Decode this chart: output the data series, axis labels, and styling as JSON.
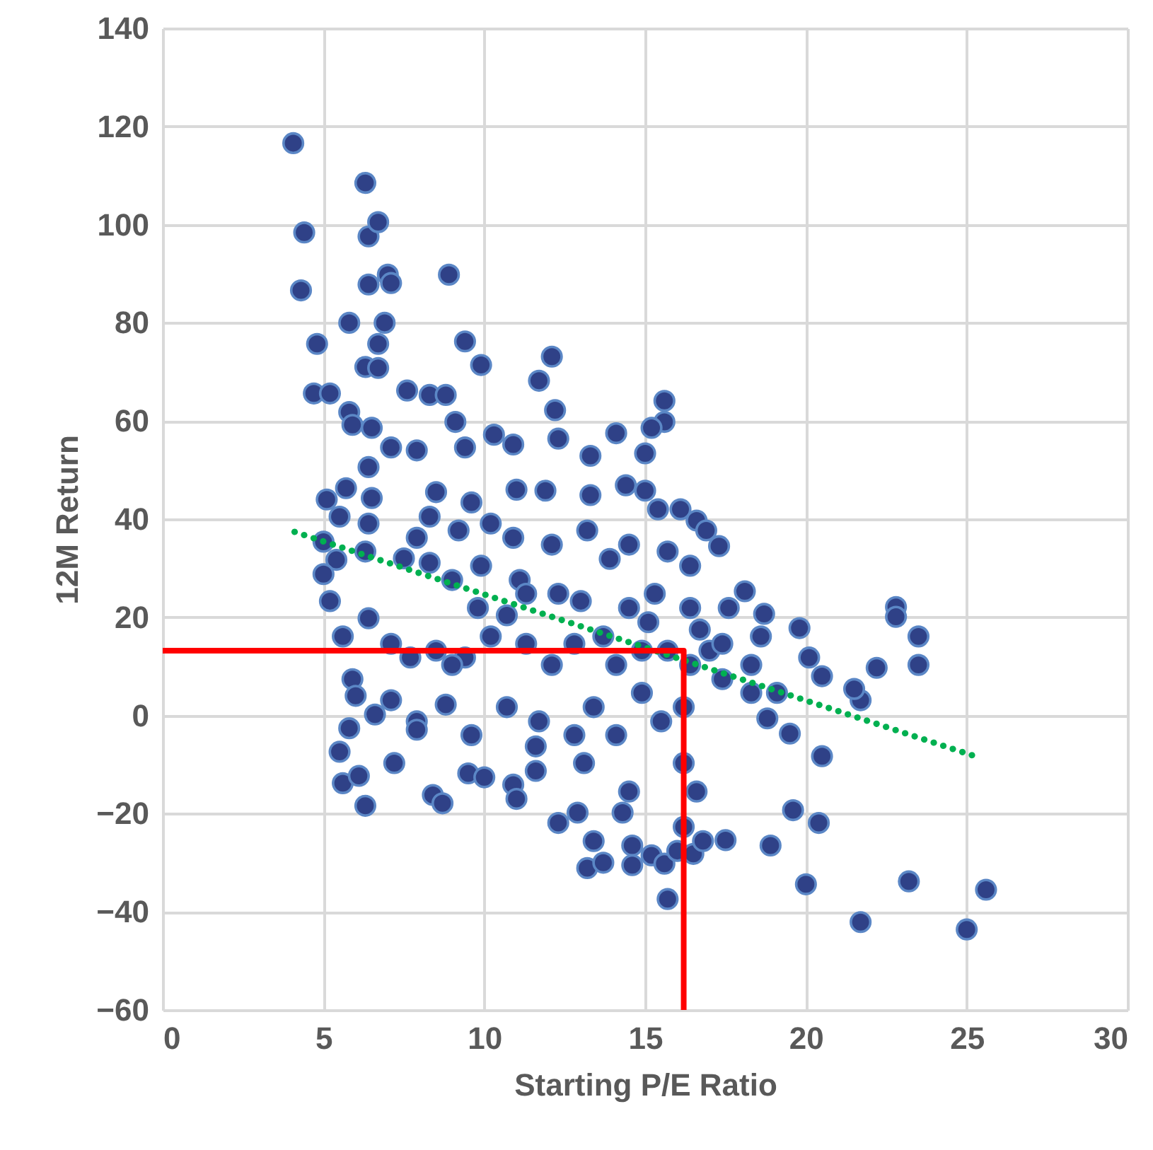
{
  "chart_data": {
    "type": "scatter",
    "xlabel": "Starting P/E Ratio",
    "ylabel": "12M Return",
    "xlim": [
      0,
      30
    ],
    "xticks": [
      0,
      5,
      10,
      15,
      20,
      25,
      30
    ],
    "ylim": [
      -60,
      140
    ],
    "yticks": [
      -60,
      -40,
      -20,
      0,
      20,
      40,
      60,
      80,
      100,
      120,
      140
    ],
    "grid": true,
    "marker": "circle",
    "series": [
      {
        "color": "#2f4187",
        "x": [
          4.06,
          4.4,
          4.3,
          4.8,
          4.7,
          5.2,
          6.3,
          6.4,
          6.7,
          7.0,
          7.1,
          5.8,
          6.9,
          6.3,
          6.7,
          6.7,
          6.4,
          8.9,
          9.4,
          12.1,
          9.9,
          11.7,
          7.6,
          8.3,
          8.8,
          15.6,
          15.6,
          15.2,
          14.1,
          10.3,
          9.1,
          5.8,
          5.9,
          6.5,
          7.1,
          7.9,
          9.4,
          10.9,
          12.3,
          13.3,
          15,
          5.1,
          6.4,
          5.7,
          6.5,
          8.5,
          9.6,
          11,
          11.9,
          13.3,
          14.4,
          15,
          15.4,
          16.1,
          16.6,
          17.3,
          5.5,
          6.4,
          5,
          5.4,
          6.3,
          5.0,
          5.2,
          5.6,
          6.4,
          7.5,
          8.3,
          9,
          9.9,
          11.1,
          12.3,
          13,
          14.5,
          15.3,
          16.4,
          17.6,
          18.1,
          18.7,
          19.8,
          20.1,
          20.5,
          22.8,
          22.8,
          23.5,
          23.5,
          22.2,
          21.7,
          21.5,
          20.5,
          19.5,
          18.8,
          18.3,
          17.4,
          17,
          16.2,
          15.5,
          14.9,
          14.1,
          13.4,
          12.8,
          11.7,
          10.7,
          9.6,
          8.8,
          7.9,
          7.1,
          5.9,
          6.0,
          5.8,
          6.6,
          5.5,
          5.6,
          6.3,
          6.1,
          7.2,
          7.9,
          8.4,
          8.7,
          9.5,
          10,
          10.9,
          11,
          11.6,
          12.3,
          12.9,
          13.2,
          13.7,
          13.4,
          14.3,
          14.6,
          14.6,
          15.2,
          15.7,
          15.6,
          16,
          16.2,
          16.5,
          16.8,
          17.5,
          16.6,
          16.2,
          18.9,
          19.6,
          20,
          20.4,
          21.7,
          23.2,
          25,
          25.6,
          19.1,
          18.3,
          18.6,
          17.4,
          16.4,
          16.7,
          15.7,
          14.9,
          15.1,
          13.7,
          12.8,
          12.1,
          11.3,
          10.2,
          9.4,
          8.5,
          7.7,
          7.1,
          9,
          9.8,
          10.7,
          11.3,
          10.9,
          10.2,
          9.2,
          8.3,
          7.9,
          12.1,
          13.2,
          13.9,
          14.5,
          15.7,
          16.4,
          16.9,
          12.2,
          13.1,
          14.1,
          14.5,
          11.6
        ],
        "values": [
          116.6,
          98.4,
          86.6,
          75.7,
          65.6,
          65.6,
          108.5,
          97.6,
          100.5,
          89.8,
          88.1,
          80,
          80,
          71,
          75.7,
          70.8,
          87.8,
          89.8,
          76.2,
          73.1,
          71.4,
          68.2,
          66.2,
          65.3,
          65.3,
          64.1,
          59.8,
          58.6,
          57.5,
          57.2,
          59.8,
          61.8,
          59.2,
          58.6,
          54.6,
          54,
          54.6,
          55.2,
          56.4,
          52.9,
          53.4,
          44.0,
          50.6,
          46.3,
          44.3,
          45.5,
          43.4,
          46,
          45.8,
          44.9,
          46.9,
          45.8,
          42,
          42,
          39.7,
          34.5,
          40.5,
          39.1,
          35.4,
          31.7,
          33.4,
          28.8,
          23.3,
          16.1,
          19.8,
          32,
          31.1,
          27.6,
          30.5,
          27.6,
          24.8,
          23.3,
          21.9,
          24.8,
          21.9,
          21.9,
          25.3,
          20.7,
          17.8,
          11.8,
          8,
          22.1,
          20.1,
          16.1,
          10.3,
          9.7,
          3.1,
          5.4,
          -8.3,
          -3.7,
          -0.6,
          4.6,
          7.4,
          13.2,
          1.7,
          -1.2,
          4.6,
          10.3,
          1.7,
          -4.0,
          -1.2,
          1.7,
          -4.0,
          2.2,
          -1.2,
          3.1,
          7.4,
          4.0,
          -2.6,
          0.2,
          -7.4,
          -13.8,
          -18.4,
          -12.3,
          -9.7,
          -2.9,
          -16.2,
          -17.9,
          -11.8,
          -12.6,
          -14.1,
          -17,
          -11.3,
          -21.9,
          -19.8,
          -31.1,
          -30,
          -25.6,
          -19.8,
          -26.5,
          -30.5,
          -28.5,
          -37.4,
          -30.2,
          -27.6,
          -22.7,
          -28.2,
          -25.6,
          -25.4,
          -15.5,
          -9.7,
          -26.5,
          -19.3,
          -34.4,
          -21.9,
          -42.1,
          -33.8,
          -43.6,
          -35.5,
          4.6,
          10.3,
          16.1,
          14.6,
          10.3,
          17.5,
          13.2,
          13.2,
          19,
          16.1,
          14.6,
          10.3,
          14.6,
          16.1,
          11.8,
          13.2,
          11.8,
          14.6,
          10.3,
          21.9,
          20.4,
          24.8,
          36.2,
          39.1,
          37.7,
          40.5,
          36.2,
          34.8,
          37.7,
          31.9,
          34.8,
          33.4,
          30.5,
          37.7,
          62.2,
          -9.7,
          -4,
          -15.5,
          -6.3
        ]
      },
      {
        "type": "line",
        "color": "#00b050",
        "line_style": "dotted",
        "marker": "none",
        "x": [
          4.1,
          25.3
        ],
        "values": [
          37.4,
          -8.4
        ]
      },
      {
        "type": "line",
        "color": "#ff0000",
        "line_style": "solid",
        "marker": "none",
        "x": [
          0,
          16.2,
          16.2
        ],
        "values": [
          13.2,
          13.2,
          -60
        ]
      }
    ]
  }
}
